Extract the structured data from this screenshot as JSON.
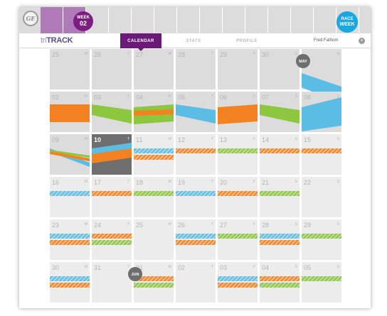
{
  "header": {
    "logo_text": "GE",
    "week_badge": {
      "top": "WEEK",
      "number": "02",
      "color": "#7b1f7f"
    },
    "race_badge": {
      "top": "RACE",
      "bottom": "WEEK",
      "color": "#1aa6e0"
    },
    "brand": {
      "tri": "tri",
      "track": "TRACK"
    },
    "tabs": [
      {
        "label": "CALENDAR",
        "active": true
      },
      {
        "label": "STATS",
        "active": false
      },
      {
        "label": "PROFILE",
        "active": false
      }
    ],
    "user": {
      "name": "Fred Fathom",
      "close_icon": "x-close-icon"
    }
  },
  "colors": {
    "swim": "#5bbde3",
    "bike": "#8dc63f",
    "run": "#f58220",
    "today": "#6e6e6e",
    "past": "#dcdcdc",
    "future": "#ececec",
    "month_badge": "#6e6e6e",
    "strip_highlight": "#b07ab8"
  },
  "weekday_letters": [
    "M",
    "T",
    "W",
    "T",
    "F",
    "S",
    "S"
  ],
  "month_badges": [
    {
      "label": "MAY",
      "row": 0,
      "col": 6
    },
    {
      "label": "JUN",
      "row": 5,
      "col": 2
    }
  ],
  "weeks": [
    [
      {
        "day": "25",
        "state": "past",
        "events": []
      },
      {
        "day": "26",
        "state": "past",
        "events": []
      },
      {
        "day": "27",
        "state": "past",
        "events": []
      },
      {
        "day": "28",
        "state": "past",
        "events": []
      },
      {
        "day": "29",
        "state": "past",
        "events": []
      },
      {
        "day": "30",
        "state": "past",
        "events": []
      },
      {
        "day": "",
        "state": "past",
        "events": [
          {
            "type": "swim",
            "style": "solid",
            "shape": "wedge-down"
          }
        ]
      }
    ],
    [
      {
        "day": "02",
        "state": "past",
        "events": [
          {
            "type": "run",
            "style": "solid",
            "shape": "flat"
          }
        ]
      },
      {
        "day": "03",
        "state": "past",
        "events": [
          {
            "type": "bike",
            "style": "solid",
            "shape": "down"
          }
        ]
      },
      {
        "day": "04",
        "state": "past",
        "events": [
          {
            "type": "bike",
            "style": "solid",
            "shape": "up"
          },
          {
            "type": "run",
            "style": "solid",
            "shape": "cross"
          }
        ]
      },
      {
        "day": "05",
        "state": "past",
        "events": [
          {
            "type": "swim",
            "style": "solid",
            "shape": "down"
          }
        ]
      },
      {
        "day": "06",
        "state": "past",
        "events": [
          {
            "type": "run",
            "style": "solid",
            "shape": "up"
          }
        ]
      },
      {
        "day": "07",
        "state": "past",
        "events": [
          {
            "type": "bike",
            "style": "solid",
            "shape": "down"
          }
        ]
      },
      {
        "day": "08",
        "state": "past",
        "events": [
          {
            "type": "swim",
            "style": "solid",
            "shape": "wedge-up"
          }
        ]
      }
    ],
    [
      {
        "day": "09",
        "state": "past",
        "events": [
          {
            "type": "swim",
            "style": "solid",
            "shape": "cross-a"
          },
          {
            "type": "bike",
            "style": "solid",
            "shape": "cross-b"
          },
          {
            "type": "run",
            "style": "solid",
            "shape": "cross-c"
          }
        ]
      },
      {
        "day": "10",
        "state": "today",
        "events": [
          {
            "type": "swim",
            "style": "solid",
            "shape": "today-swim"
          },
          {
            "type": "run",
            "style": "solid",
            "shape": "today-run"
          }
        ]
      },
      {
        "day": "11",
        "state": "future",
        "events": [
          {
            "type": "swim",
            "style": "hatch",
            "shape": "stack"
          },
          {
            "type": "run",
            "style": "hatch",
            "shape": "stack"
          }
        ]
      },
      {
        "day": "12",
        "state": "future",
        "events": [
          {
            "type": "run",
            "style": "hatch",
            "shape": "stack"
          }
        ]
      },
      {
        "day": "13",
        "state": "future",
        "events": [
          {
            "type": "bike",
            "style": "hatch",
            "shape": "stack"
          }
        ]
      },
      {
        "day": "14",
        "state": "future",
        "events": [
          {
            "type": "run",
            "style": "hatch",
            "shape": "stack"
          }
        ]
      },
      {
        "day": "15",
        "state": "future",
        "events": [
          {
            "type": "run",
            "style": "hatch",
            "shape": "stack"
          }
        ]
      }
    ],
    [
      {
        "day": "16",
        "state": "future",
        "events": [
          {
            "type": "swim",
            "style": "hatch",
            "shape": "stack"
          }
        ]
      },
      {
        "day": "17",
        "state": "future",
        "events": [
          {
            "type": "run",
            "style": "hatch",
            "shape": "stack"
          }
        ]
      },
      {
        "day": "18",
        "state": "future",
        "events": [
          {
            "type": "bike",
            "style": "hatch",
            "shape": "stack"
          }
        ]
      },
      {
        "day": "19",
        "state": "future",
        "events": [
          {
            "type": "swim",
            "style": "hatch",
            "shape": "stack"
          }
        ]
      },
      {
        "day": "20",
        "state": "future",
        "events": [
          {
            "type": "run",
            "style": "hatch",
            "shape": "stack"
          }
        ]
      },
      {
        "day": "21",
        "state": "future",
        "events": [
          {
            "type": "bike",
            "style": "hatch",
            "shape": "stack"
          }
        ]
      },
      {
        "day": "22",
        "state": "future",
        "events": []
      }
    ],
    [
      {
        "day": "23",
        "state": "future",
        "events": [
          {
            "type": "swim",
            "style": "hatch",
            "shape": "stack"
          },
          {
            "type": "run",
            "style": "hatch",
            "shape": "stack"
          }
        ]
      },
      {
        "day": "24",
        "state": "future",
        "events": [
          {
            "type": "run",
            "style": "hatch",
            "shape": "stack"
          },
          {
            "type": "bike",
            "style": "hatch",
            "shape": "stack"
          }
        ]
      },
      {
        "day": "25",
        "state": "future",
        "events": []
      },
      {
        "day": "26",
        "state": "future",
        "events": [
          {
            "type": "swim",
            "style": "hatch",
            "shape": "stack"
          },
          {
            "type": "run",
            "style": "hatch",
            "shape": "stack"
          }
        ]
      },
      {
        "day": "27",
        "state": "future",
        "events": [
          {
            "type": "bike",
            "style": "hatch",
            "shape": "stack"
          }
        ]
      },
      {
        "day": "28",
        "state": "future",
        "events": [
          {
            "type": "swim",
            "style": "hatch",
            "shape": "stack"
          },
          {
            "type": "run",
            "style": "hatch",
            "shape": "stack"
          }
        ]
      },
      {
        "day": "29",
        "state": "future",
        "events": [
          {
            "type": "bike",
            "style": "hatch",
            "shape": "stack"
          }
        ]
      }
    ],
    [
      {
        "day": "30",
        "state": "future",
        "events": [
          {
            "type": "swim",
            "style": "hatch",
            "shape": "stack"
          },
          {
            "type": "run",
            "style": "hatch",
            "shape": "stack"
          }
        ]
      },
      {
        "day": "31",
        "state": "future",
        "events": []
      },
      {
        "day": "01",
        "state": "future",
        "events": [
          {
            "type": "run",
            "style": "hatch",
            "shape": "stack"
          },
          {
            "type": "bike",
            "style": "hatch",
            "shape": "stack"
          }
        ]
      },
      {
        "day": "02",
        "state": "future",
        "events": []
      },
      {
        "day": "03",
        "state": "future",
        "events": [
          {
            "type": "swim",
            "style": "hatch",
            "shape": "stack"
          },
          {
            "type": "run",
            "style": "hatch",
            "shape": "stack"
          }
        ]
      },
      {
        "day": "04",
        "state": "future",
        "events": [
          {
            "type": "run",
            "style": "hatch",
            "shape": "stack"
          },
          {
            "type": "bike",
            "style": "hatch",
            "shape": "stack"
          }
        ]
      },
      {
        "day": "05",
        "state": "future",
        "events": [
          {
            "type": "bike",
            "style": "hatch",
            "shape": "stack"
          }
        ]
      }
    ]
  ]
}
